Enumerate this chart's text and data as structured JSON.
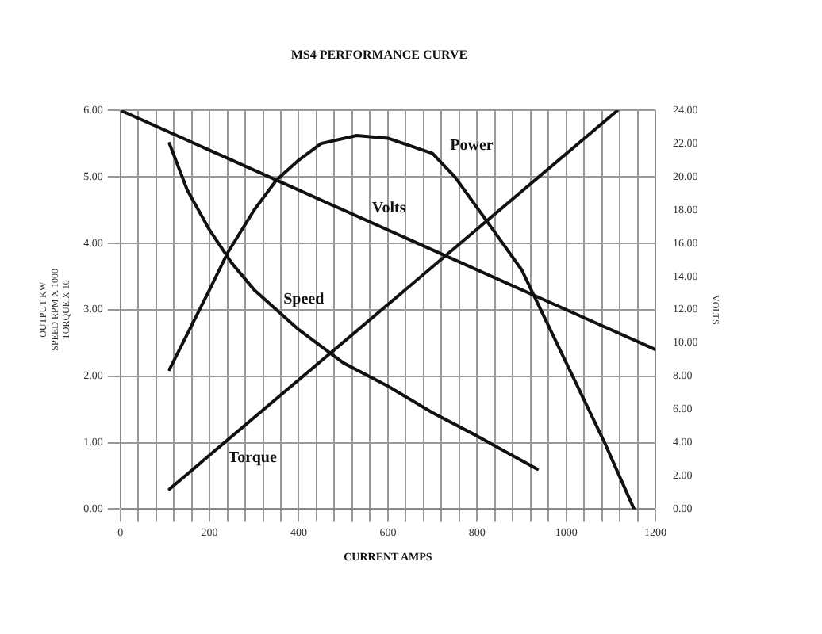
{
  "chart_data": {
    "type": "line",
    "title": "MS4 PERFORMANCE CURVE",
    "xlabel": "CURRENT AMPS",
    "ylabel": "OUTPUT KW\nSPEED RPM X 1000\nTORQUE X 10",
    "y2label": "VOLTS",
    "series": [
      {
        "name": "Power",
        "color": "#111111",
        "x": [
          110,
          200,
          240,
          300,
          350,
          400,
          450,
          530,
          600,
          700,
          750,
          821,
          900,
          927,
          1000,
          1086,
          1152
        ],
        "values": [
          2.1,
          3.3,
          3.85,
          4.5,
          4.95,
          5.25,
          5.5,
          5.62,
          5.58,
          5.35,
          5.0,
          4.34,
          3.6,
          3.22,
          2.2,
          1.0,
          0
        ]
      },
      {
        "name": "Volts",
        "color": "#111111",
        "axis": "y2",
        "x": [
          0,
          1200
        ],
        "values": [
          24,
          9.6
        ]
      },
      {
        "name": "Speed",
        "color": "#111111",
        "x": [
          110,
          150,
          200,
          250,
          300,
          400,
          500,
          600,
          700,
          800,
          935
        ],
        "values": [
          5.5,
          4.8,
          4.2,
          3.7,
          3.3,
          2.7,
          2.2,
          1.85,
          1.45,
          1.1,
          0.6
        ]
      },
      {
        "name": "Torque",
        "color": "#111111",
        "x": [
          110,
          1115
        ],
        "values": [
          0.3,
          6.0
        ]
      }
    ],
    "xlim": [
      0,
      1200
    ],
    "xticks": [
      0,
      {
        "value": 40,
        "label": null
      },
      {
        "value": 80,
        "label": null
      },
      {
        "value": 120,
        "label": null
      },
      {
        "value": 160,
        "label": null
      },
      200,
      {
        "value": 240,
        "label": null
      },
      {
        "value": 280,
        "label": null
      },
      {
        "value": 320,
        "label": null
      },
      {
        "value": 360,
        "label": null
      },
      400,
      {
        "value": 440,
        "label": null
      },
      {
        "value": 480,
        "label": null
      },
      {
        "value": 520,
        "label": null
      },
      {
        "value": 560,
        "label": null
      },
      600,
      {
        "value": 640,
        "label": null
      },
      {
        "value": 680,
        "label": null
      },
      {
        "value": 720,
        "label": null
      },
      {
        "value": 760,
        "label": null
      },
      800,
      {
        "value": 840,
        "label": null
      },
      {
        "value": 880,
        "label": null
      },
      {
        "value": 920,
        "label": null
      },
      {
        "value": 960,
        "label": null
      },
      1000,
      {
        "value": 1040,
        "label": null
      },
      {
        "value": 1080,
        "label": null
      },
      {
        "value": 1120,
        "label": null
      },
      {
        "value": 1160,
        "label": null
      },
      1200
    ],
    "ylim": [
      0,
      6
    ],
    "yticks": [
      {
        "value": 0,
        "label": "0.00"
      },
      {
        "value": 1,
        "label": "1.00"
      },
      {
        "value": 2,
        "label": "2.00"
      },
      {
        "value": 3,
        "label": "3.00"
      },
      {
        "value": 4,
        "label": "4.00"
      },
      {
        "value": 5,
        "label": "5.00"
      },
      {
        "value": 6,
        "label": "6.00"
      }
    ],
    "y2lim": [
      0,
      24
    ],
    "y2ticks": [
      {
        "value": 0,
        "label": "0.00"
      },
      {
        "value": 2,
        "label": "2.00"
      },
      {
        "value": 4,
        "label": "4.00"
      },
      {
        "value": 6,
        "label": "6.00"
      },
      {
        "value": 8,
        "label": "8.00"
      },
      {
        "value": 10,
        "label": "10.00"
      },
      {
        "value": 12,
        "label": "12.00"
      },
      {
        "value": 14,
        "label": "14.00"
      },
      {
        "value": 16,
        "label": "16.00"
      },
      {
        "value": 18,
        "label": "18.00"
      },
      {
        "value": 20,
        "label": "20.00"
      },
      {
        "value": 22,
        "label": "22.00"
      },
      {
        "value": 24,
        "label": "24.00"
      }
    ],
    "grid": true,
    "legend": false,
    "marker": "none",
    "line_style": "solid"
  }
}
